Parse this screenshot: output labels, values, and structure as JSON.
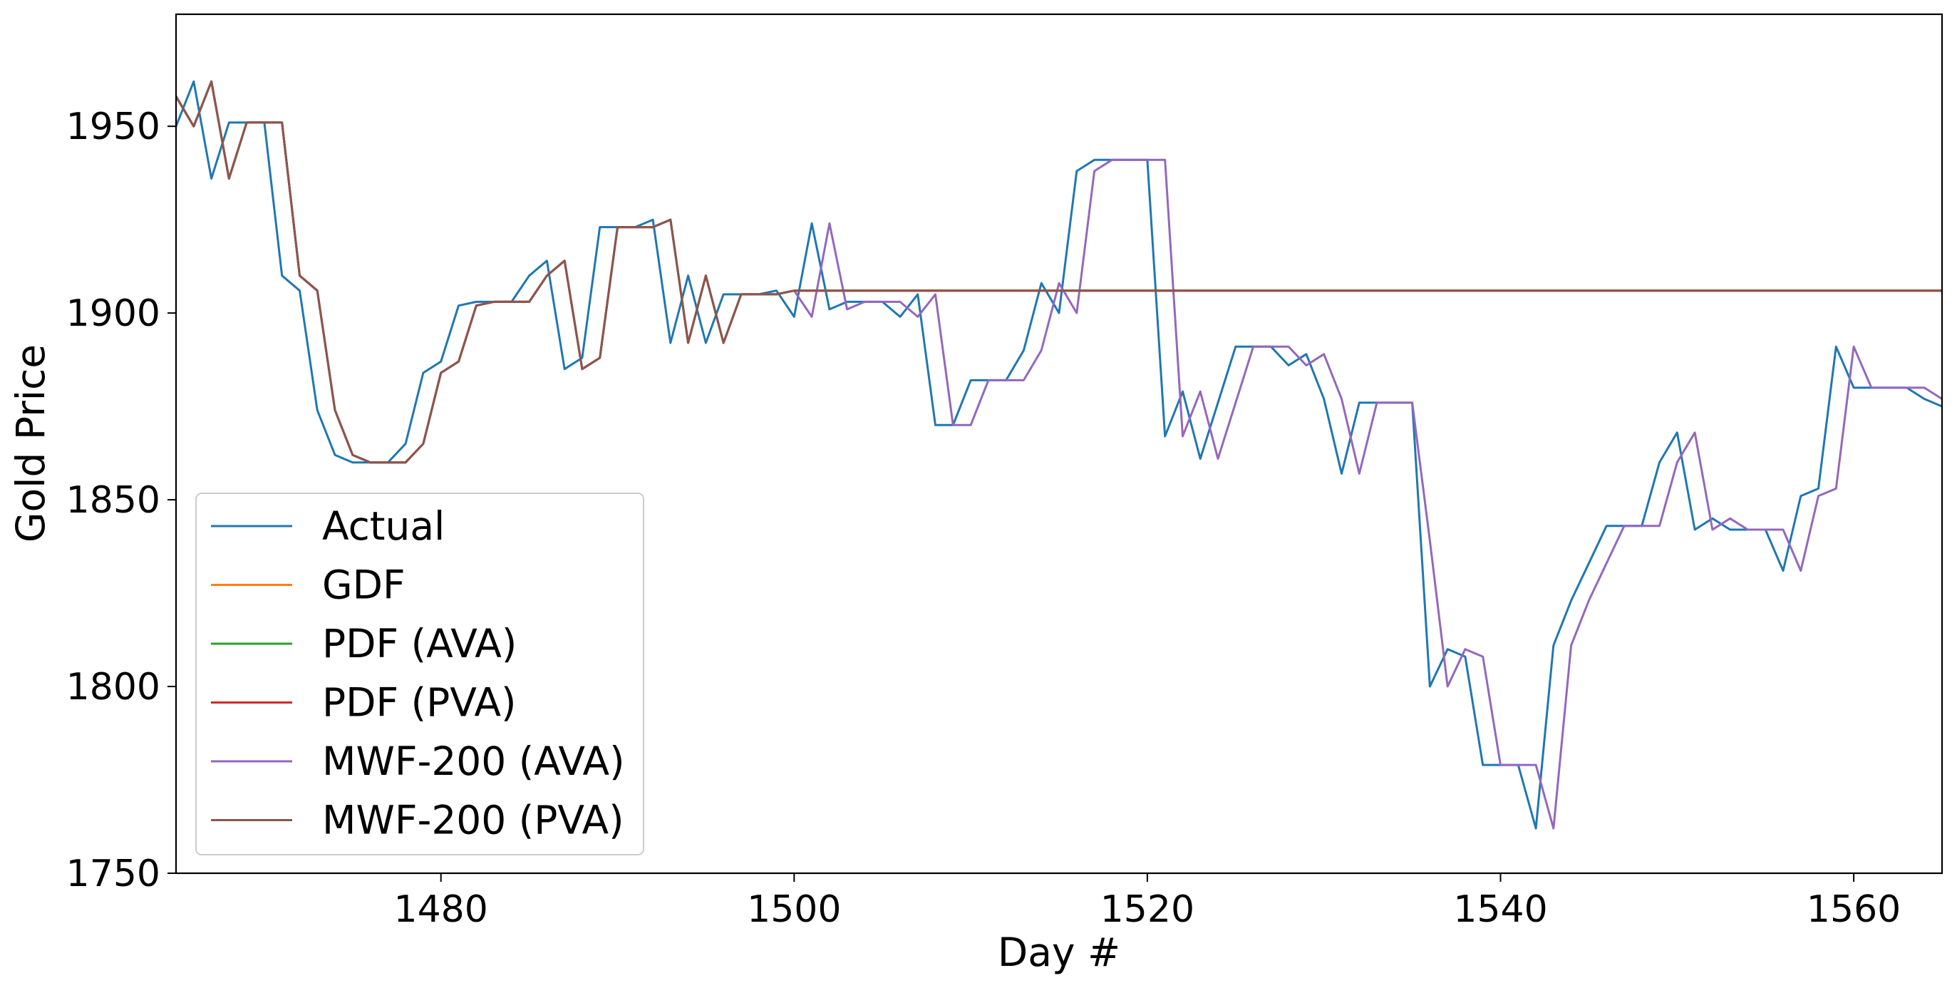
{
  "chart_data": {
    "type": "line",
    "title": "",
    "xlabel": "Day #",
    "ylabel": "Gold Price",
    "xlim": [
      1465,
      1565
    ],
    "ylim": [
      1750,
      1980
    ],
    "xticks": [
      1480,
      1500,
      1520,
      1540,
      1560
    ],
    "yticks": [
      1750,
      1800,
      1850,
      1900,
      1950
    ],
    "grid": false,
    "legend_position": "lower-left",
    "series": [
      {
        "name": "Actual",
        "color": "#1f77b4",
        "x": [
          1465,
          1466,
          1467,
          1468,
          1469,
          1470,
          1471,
          1472,
          1473,
          1474,
          1475,
          1476,
          1477,
          1478,
          1479,
          1480,
          1481,
          1482,
          1483,
          1484,
          1485,
          1486,
          1487,
          1488,
          1489,
          1490,
          1491,
          1492,
          1493,
          1494,
          1495,
          1496,
          1497,
          1498,
          1499,
          1500,
          1501,
          1502,
          1503,
          1504,
          1505,
          1506,
          1507,
          1508,
          1509,
          1510,
          1511,
          1512,
          1513,
          1514,
          1515,
          1516,
          1517,
          1518,
          1519,
          1520,
          1521,
          1522,
          1523,
          1524,
          1525,
          1526,
          1527,
          1528,
          1529,
          1530,
          1531,
          1532,
          1533,
          1534,
          1535,
          1536,
          1537,
          1538,
          1539,
          1540,
          1541,
          1542,
          1543,
          1544,
          1545,
          1546,
          1547,
          1548,
          1549,
          1550,
          1551,
          1552,
          1553,
          1554,
          1555,
          1556,
          1557,
          1558,
          1559,
          1560,
          1561,
          1562,
          1563,
          1564,
          1565
        ],
        "y": [
          1950,
          1962,
          1936,
          1951,
          1951,
          1951,
          1910,
          1906,
          1874,
          1862,
          1860,
          1860,
          1860,
          1865,
          1884,
          1887,
          1902,
          1903,
          1903,
          1903,
          1910,
          1914,
          1885,
          1888,
          1923,
          1923,
          1923,
          1925,
          1892,
          1910,
          1892,
          1905,
          1905,
          1905,
          1906,
          1899,
          1924,
          1901,
          1903,
          1903,
          1903,
          1899,
          1905,
          1870,
          1870,
          1882,
          1882,
          1882,
          1890,
          1908,
          1900,
          1938,
          1941,
          1941,
          1941,
          1941,
          1867,
          1879,
          1861,
          1876,
          1891,
          1891,
          1891,
          1886,
          1889,
          1877,
          1857,
          1876,
          1876,
          1876,
          1876,
          1800,
          1810,
          1808,
          1779,
          1779,
          1779,
          1762,
          1811,
          1823,
          1833,
          1843,
          1843,
          1843,
          1860,
          1868,
          1842,
          1845,
          1842,
          1842,
          1842,
          1831,
          1851,
          1853,
          1891,
          1880,
          1880,
          1880,
          1880,
          1877,
          1875
        ]
      },
      {
        "name": "GDF",
        "color": "#ff7f0e",
        "x": [
          1465,
          1466,
          1467,
          1468,
          1469,
          1470,
          1471,
          1472,
          1473,
          1474,
          1475,
          1476,
          1477,
          1478,
          1479,
          1480,
          1481,
          1482,
          1483,
          1484,
          1485,
          1486,
          1487,
          1488,
          1489,
          1490,
          1491,
          1492,
          1493,
          1494,
          1495,
          1496,
          1497,
          1498,
          1499,
          1500,
          1565
        ],
        "y": [
          1958,
          1950,
          1962,
          1936,
          1951,
          1951,
          1951,
          1910,
          1906,
          1874,
          1862,
          1860,
          1860,
          1860,
          1865,
          1884,
          1887,
          1902,
          1903,
          1903,
          1903,
          1910,
          1914,
          1885,
          1888,
          1923,
          1923,
          1923,
          1925,
          1892,
          1910,
          1892,
          1905,
          1905,
          1905,
          1906,
          1906
        ]
      },
      {
        "name": "PDF (AVA)",
        "color": "#2ca02c",
        "x": [
          1465,
          1466,
          1467,
          1468,
          1469,
          1470,
          1471,
          1472,
          1473,
          1474,
          1475,
          1476,
          1477,
          1478,
          1479,
          1480,
          1481,
          1482,
          1483,
          1484,
          1485,
          1486,
          1487,
          1488,
          1489,
          1490,
          1491,
          1492,
          1493,
          1494,
          1495,
          1496,
          1497,
          1498,
          1499,
          1500,
          1565
        ],
        "y": [
          1958,
          1950,
          1962,
          1936,
          1951,
          1951,
          1951,
          1910,
          1906,
          1874,
          1862,
          1860,
          1860,
          1860,
          1865,
          1884,
          1887,
          1902,
          1903,
          1903,
          1903,
          1910,
          1914,
          1885,
          1888,
          1923,
          1923,
          1923,
          1925,
          1892,
          1910,
          1892,
          1905,
          1905,
          1905,
          1906,
          1906
        ]
      },
      {
        "name": "PDF (PVA)",
        "color": "#d62728",
        "x": [
          1465,
          1466,
          1467,
          1468,
          1469,
          1470,
          1471,
          1472,
          1473,
          1474,
          1475,
          1476,
          1477,
          1478,
          1479,
          1480,
          1481,
          1482,
          1483,
          1484,
          1485,
          1486,
          1487,
          1488,
          1489,
          1490,
          1491,
          1492,
          1493,
          1494,
          1495,
          1496,
          1497,
          1498,
          1499,
          1500,
          1565
        ],
        "y": [
          1958,
          1950,
          1962,
          1936,
          1951,
          1951,
          1951,
          1910,
          1906,
          1874,
          1862,
          1860,
          1860,
          1860,
          1865,
          1884,
          1887,
          1902,
          1903,
          1903,
          1903,
          1910,
          1914,
          1885,
          1888,
          1923,
          1923,
          1923,
          1925,
          1892,
          1910,
          1892,
          1905,
          1905,
          1905,
          1906,
          1906
        ]
      },
      {
        "name": "MWF-200 (AVA)",
        "color": "#9467bd",
        "x": [
          1465,
          1466,
          1467,
          1468,
          1469,
          1470,
          1471,
          1472,
          1473,
          1474,
          1475,
          1476,
          1477,
          1478,
          1479,
          1480,
          1481,
          1482,
          1483,
          1484,
          1485,
          1486,
          1487,
          1488,
          1489,
          1490,
          1491,
          1492,
          1493,
          1494,
          1495,
          1496,
          1497,
          1498,
          1499,
          1500,
          1501,
          1502,
          1503,
          1504,
          1505,
          1506,
          1507,
          1508,
          1509,
          1510,
          1511,
          1512,
          1513,
          1514,
          1515,
          1516,
          1517,
          1518,
          1519,
          1520,
          1521,
          1522,
          1523,
          1524,
          1525,
          1526,
          1527,
          1528,
          1529,
          1530,
          1531,
          1532,
          1533,
          1534,
          1535,
          1536,
          1537,
          1538,
          1539,
          1540,
          1541,
          1542,
          1543,
          1544,
          1545,
          1546,
          1547,
          1548,
          1549,
          1550,
          1551,
          1552,
          1553,
          1554,
          1555,
          1556,
          1557,
          1558,
          1559,
          1560,
          1561,
          1562,
          1563,
          1564,
          1565
        ],
        "y": [
          1958,
          1950,
          1962,
          1936,
          1951,
          1951,
          1951,
          1910,
          1906,
          1874,
          1862,
          1860,
          1860,
          1860,
          1865,
          1884,
          1887,
          1902,
          1903,
          1903,
          1903,
          1910,
          1914,
          1885,
          1888,
          1923,
          1923,
          1923,
          1925,
          1892,
          1910,
          1892,
          1905,
          1905,
          1905,
          1906,
          1899,
          1924,
          1901,
          1903,
          1903,
          1903,
          1899,
          1905,
          1870,
          1870,
          1882,
          1882,
          1882,
          1890,
          1908,
          1900,
          1938,
          1941,
          1941,
          1941,
          1941,
          1867,
          1879,
          1861,
          1876,
          1891,
          1891,
          1891,
          1886,
          1889,
          1877,
          1857,
          1876,
          1876,
          1876,
          1839,
          1800,
          1810,
          1808,
          1779,
          1779,
          1779,
          1762,
          1811,
          1823,
          1833,
          1843,
          1843,
          1843,
          1860,
          1868,
          1842,
          1845,
          1842,
          1842,
          1842,
          1831,
          1851,
          1853,
          1891,
          1880,
          1880,
          1880,
          1880,
          1877
        ]
      },
      {
        "name": "MWF-200 (PVA)",
        "color": "#8c564b",
        "x": [
          1465,
          1466,
          1467,
          1468,
          1469,
          1470,
          1471,
          1472,
          1473,
          1474,
          1475,
          1476,
          1477,
          1478,
          1479,
          1480,
          1481,
          1482,
          1483,
          1484,
          1485,
          1486,
          1487,
          1488,
          1489,
          1490,
          1491,
          1492,
          1493,
          1494,
          1495,
          1496,
          1497,
          1498,
          1499,
          1500,
          1565
        ],
        "y": [
          1958,
          1950,
          1962,
          1936,
          1951,
          1951,
          1951,
          1910,
          1906,
          1874,
          1862,
          1860,
          1860,
          1860,
          1865,
          1884,
          1887,
          1902,
          1903,
          1903,
          1903,
          1910,
          1914,
          1885,
          1888,
          1923,
          1923,
          1923,
          1925,
          1892,
          1910,
          1892,
          1905,
          1905,
          1905,
          1906,
          1906
        ]
      }
    ]
  }
}
